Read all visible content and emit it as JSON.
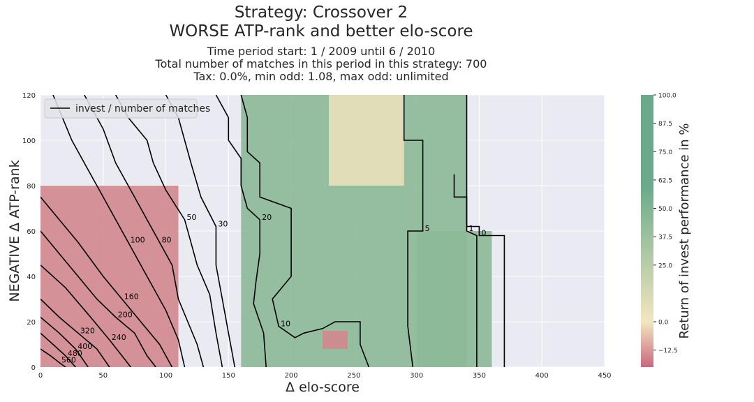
{
  "chart_data": {
    "type": "heatmap",
    "title_line1": "Strategy: Crossover 2",
    "title_line2": "WORSE ATP-rank and better elo-score",
    "subtitle_lines": [
      "Time period start: 1 / 2009 until 6 / 2010",
      "Total number of matches in this period in this strategy: 700",
      "Tax: 0.0%, min odd: 1.08, max odd: unlimited"
    ],
    "xlabel": "Δ elo-score",
    "ylabel": "NEGATIVE Δ ATP-rank",
    "xlim": [
      0,
      450
    ],
    "ylim": [
      0,
      120
    ],
    "xticks": [
      0,
      50,
      100,
      150,
      200,
      250,
      300,
      350,
      400,
      450
    ],
    "yticks": [
      0,
      20,
      40,
      60,
      80,
      100,
      120
    ],
    "grid": true,
    "legend": {
      "position": "top-left",
      "entries": [
        "invest / number of matches"
      ]
    },
    "colorbar": {
      "label": "Return of invest performance in %",
      "ticks": [
        "100.0",
        "87.5",
        "75.0",
        "62.5",
        "50.0",
        "37.5",
        "25.0",
        "0.0",
        "−12.5"
      ],
      "tick_values": [
        100,
        87.5,
        75,
        62.5,
        50,
        37.5,
        25,
        0,
        -12.5
      ],
      "range": [
        -20,
        100
      ],
      "colors": {
        "negative": "#c9677e",
        "neutral": "#f2e6bf",
        "positive": "#6aaa8a"
      }
    },
    "regions": [
      {
        "name": "low-elo red zone",
        "x": [
          0,
          110
        ],
        "y": [
          0,
          80
        ],
        "value": -15
      },
      {
        "name": "green band",
        "x": [
          160,
          340
        ],
        "y": [
          0,
          120
        ],
        "value": 45
      },
      {
        "name": "neutral strip",
        "x": [
          230,
          290
        ],
        "y": [
          80,
          120
        ],
        "value": 5
      },
      {
        "name": "green right block",
        "x": [
          300,
          360
        ],
        "y": [
          0,
          60
        ],
        "value": 45
      },
      {
        "name": "red spot",
        "x": [
          225,
          245
        ],
        "y": [
          8,
          16
        ],
        "value": -15
      }
    ],
    "contour_lines": [
      {
        "label": "0",
        "points": [
          [
            340,
            120
          ],
          [
            340,
            62
          ],
          [
            350,
            62
          ],
          [
            350,
            58
          ],
          [
            370,
            58
          ],
          [
            370,
            0
          ]
        ]
      },
      {
        "label": "1",
        "points": [
          [
            330,
            85
          ],
          [
            330,
            75
          ],
          [
            340,
            75
          ],
          [
            340,
            60
          ],
          [
            348,
            58
          ],
          [
            348,
            0
          ]
        ]
      },
      {
        "label": "5",
        "points": [
          [
            290,
            120
          ],
          [
            290,
            100
          ],
          [
            305,
            100
          ],
          [
            305,
            60
          ],
          [
            293,
            60
          ],
          [
            293,
            18
          ],
          [
            297,
            0
          ]
        ]
      },
      {
        "label": "10",
        "points": [
          [
            160,
            120
          ],
          [
            165,
            110
          ],
          [
            165,
            95
          ],
          [
            175,
            90
          ],
          [
            175,
            75
          ],
          [
            200,
            70
          ],
          [
            200,
            40
          ],
          [
            185,
            30
          ],
          [
            190,
            18
          ],
          [
            203,
            13
          ],
          [
            210,
            15
          ],
          [
            225,
            17
          ],
          [
            235,
            20
          ],
          [
            255,
            20
          ],
          [
            255,
            10
          ],
          [
            262,
            0
          ]
        ]
      },
      {
        "label": "20",
        "points": [
          [
            140,
            120
          ],
          [
            150,
            110
          ],
          [
            150,
            100
          ],
          [
            160,
            92
          ],
          [
            160,
            80
          ],
          [
            165,
            70
          ],
          [
            175,
            65
          ],
          [
            175,
            50
          ],
          [
            172,
            38
          ],
          [
            170,
            28
          ],
          [
            178,
            15
          ],
          [
            180,
            0
          ]
        ]
      },
      {
        "label": "30",
        "points": [
          [
            100,
            120
          ],
          [
            110,
            110
          ],
          [
            115,
            100
          ],
          [
            120,
            90
          ],
          [
            128,
            75
          ],
          [
            140,
            62
          ],
          [
            140,
            45
          ],
          [
            145,
            30
          ],
          [
            150,
            15
          ],
          [
            155,
            0
          ]
        ]
      },
      {
        "label": "50",
        "points": [
          [
            60,
            120
          ],
          [
            70,
            110
          ],
          [
            85,
            100
          ],
          [
            90,
            90
          ],
          [
            100,
            78
          ],
          [
            115,
            65
          ],
          [
            120,
            55
          ],
          [
            125,
            45
          ],
          [
            135,
            32
          ],
          [
            140,
            15
          ],
          [
            145,
            0
          ]
        ]
      },
      {
        "label": "80",
        "points": [
          [
            35,
            120
          ],
          [
            50,
            105
          ],
          [
            60,
            90
          ],
          [
            75,
            75
          ],
          [
            85,
            65
          ],
          [
            95,
            55
          ],
          [
            105,
            45
          ],
          [
            110,
            30
          ],
          [
            125,
            10
          ],
          [
            130,
            0
          ]
        ]
      },
      {
        "label": "100",
        "points": [
          [
            10,
            120
          ],
          [
            25,
            100
          ],
          [
            40,
            85
          ],
          [
            55,
            70
          ],
          [
            70,
            55
          ],
          [
            85,
            40
          ],
          [
            100,
            25
          ],
          [
            110,
            12
          ],
          [
            115,
            0
          ]
        ]
      },
      {
        "label": "160",
        "points": [
          [
            0,
            75
          ],
          [
            15,
            65
          ],
          [
            30,
            55
          ],
          [
            50,
            40
          ],
          [
            65,
            30
          ],
          [
            80,
            20
          ],
          [
            95,
            10
          ],
          [
            105,
            0
          ]
        ]
      },
      {
        "label": "200",
        "points": [
          [
            0,
            60
          ],
          [
            15,
            50
          ],
          [
            30,
            40
          ],
          [
            45,
            30
          ],
          [
            60,
            22
          ],
          [
            75,
            15
          ],
          [
            85,
            5
          ],
          [
            92,
            0
          ]
        ]
      },
      {
        "label": "240",
        "points": [
          [
            0,
            45
          ],
          [
            20,
            35
          ],
          [
            40,
            22
          ],
          [
            55,
            12
          ],
          [
            65,
            5
          ],
          [
            72,
            0
          ]
        ]
      },
      {
        "label": "320",
        "points": [
          [
            0,
            30
          ],
          [
            15,
            22
          ],
          [
            30,
            15
          ],
          [
            45,
            8
          ],
          [
            55,
            0
          ]
        ]
      },
      {
        "label": "400",
        "points": [
          [
            0,
            22
          ],
          [
            15,
            15
          ],
          [
            28,
            8
          ],
          [
            38,
            0
          ]
        ]
      },
      {
        "label": "480",
        "points": [
          [
            0,
            15
          ],
          [
            10,
            10
          ],
          [
            20,
            5
          ],
          [
            28,
            0
          ]
        ]
      },
      {
        "label": "560",
        "points": [
          [
            0,
            8
          ],
          [
            8,
            5
          ],
          [
            15,
            2
          ],
          [
            20,
            0
          ]
        ]
      }
    ]
  }
}
